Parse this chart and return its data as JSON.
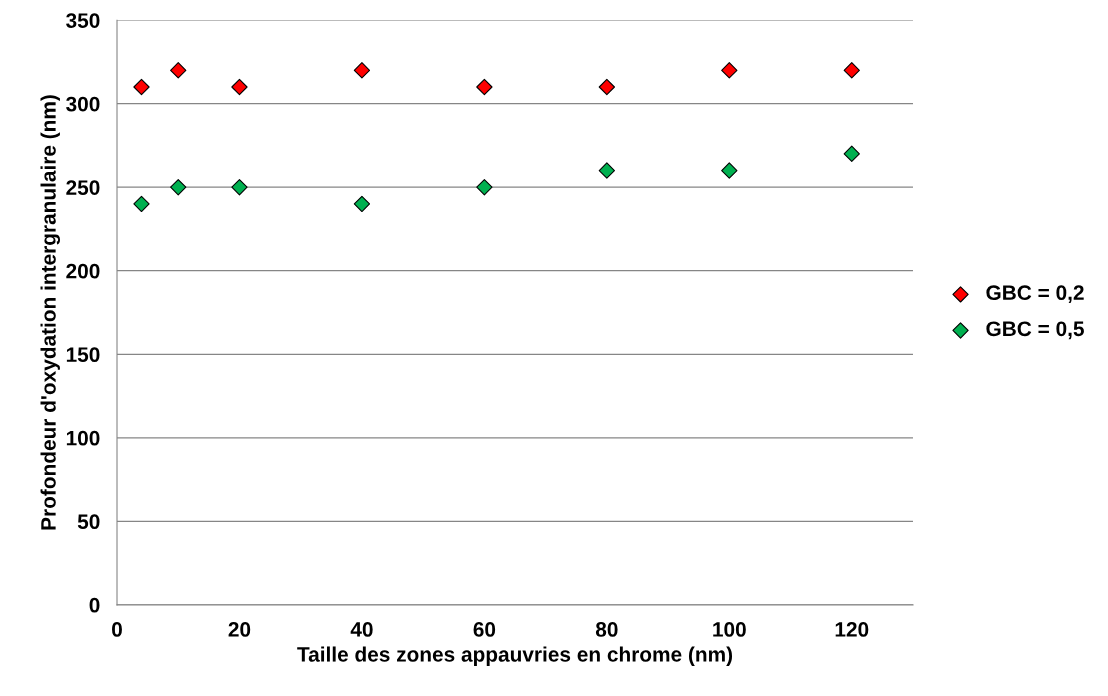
{
  "chart_data": {
    "type": "scatter",
    "xlabel": "Taille des zones appauvries en chrome (nm)",
    "ylabel": "Profondeur d'oxydation intergranulaire (nm)",
    "x": [
      4,
      10,
      20,
      40,
      60,
      80,
      100,
      120
    ],
    "series": [
      {
        "name": "GBC = 0,2",
        "color": "#ff0000",
        "values": [
          310,
          320,
          310,
          320,
          310,
          310,
          320,
          320
        ]
      },
      {
        "name": "GBC = 0,5",
        "color": "#00b050",
        "values": [
          240,
          250,
          250,
          240,
          250,
          260,
          260,
          270
        ]
      }
    ],
    "xlim": [
      0,
      130
    ],
    "xticks": [
      0,
      20,
      40,
      60,
      80,
      100,
      120
    ],
    "ylim": [
      0,
      350
    ],
    "yticks": [
      0,
      50,
      100,
      150,
      200,
      250,
      300,
      350
    ],
    "grid": "y",
    "legend": "right",
    "marker": "diamond"
  }
}
